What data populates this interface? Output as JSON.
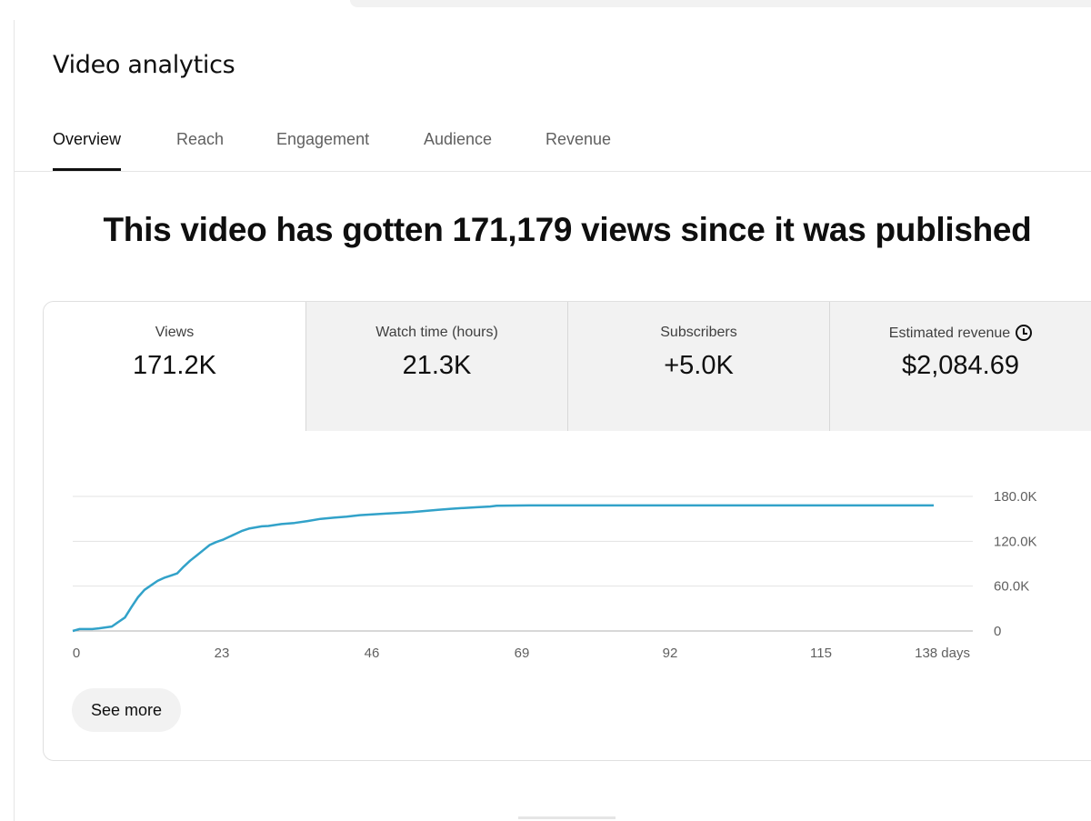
{
  "page_title": "Video analytics",
  "tabs": [
    {
      "label": "Overview",
      "active": true
    },
    {
      "label": "Reach",
      "active": false
    },
    {
      "label": "Engagement",
      "active": false
    },
    {
      "label": "Audience",
      "active": false
    },
    {
      "label": "Revenue",
      "active": false
    }
  ],
  "headline": "This video has gotten 171,179 views since it was published",
  "metrics": [
    {
      "label": "Views",
      "value": "171.2K"
    },
    {
      "label": "Watch time (hours)",
      "value": "21.3K"
    },
    {
      "label": "Subscribers",
      "value": "+5.0K"
    },
    {
      "label": "Estimated revenue",
      "value": "$2,084.69",
      "icon": "clock-icon"
    }
  ],
  "see_more_label": "See more",
  "colors": {
    "accent": "#32a2c9",
    "active_tab": "#0f0f0f"
  },
  "chart_data": {
    "type": "line",
    "x_ticks": [
      "0",
      "23",
      "46",
      "69",
      "92",
      "115",
      "138 days"
    ],
    "y_ticks": [
      "0",
      "60.0K",
      "120.0K",
      "180.0K"
    ],
    "xlim": [
      0,
      138
    ],
    "ylim": [
      0,
      180000
    ],
    "grid": true,
    "series": [
      {
        "x": [
          0,
          1,
          3,
          4,
          6,
          7,
          8,
          9,
          10,
          11,
          12,
          13,
          14,
          15,
          16,
          17,
          18,
          19,
          20,
          21,
          22,
          23,
          24,
          25,
          26,
          27,
          28,
          29,
          30,
          32,
          34,
          36,
          38,
          40,
          42,
          44,
          46,
          48,
          50,
          52,
          54,
          56,
          58,
          60,
          62,
          64,
          65,
          70,
          80,
          90,
          100,
          110,
          120,
          130,
          132
        ],
        "y": [
          0,
          2500,
          2500,
          3500,
          6000,
          12000,
          18000,
          32000,
          45000,
          55000,
          61000,
          67000,
          71000,
          74000,
          77000,
          86000,
          94000,
          101000,
          108000,
          115000,
          119000,
          122000,
          126000,
          130000,
          134000,
          137000,
          138500,
          140000,
          140500,
          143000,
          144500,
          147000,
          150000,
          151500,
          153000,
          155000,
          156000,
          157000,
          158000,
          159000,
          160500,
          162000,
          163500,
          164500,
          165500,
          166500,
          167500,
          168000,
          168000,
          168000,
          168000,
          168000,
          168000,
          168000,
          168000
        ]
      }
    ]
  }
}
